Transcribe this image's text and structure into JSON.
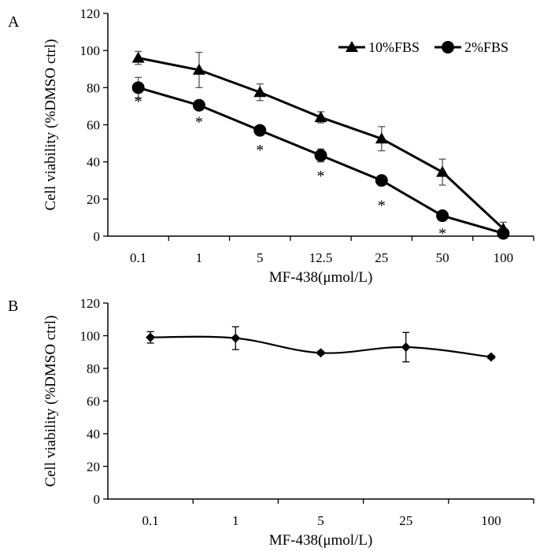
{
  "chart_data": [
    {
      "type": "line",
      "panel_label": "A",
      "categories": [
        "0.1",
        "1",
        "5",
        "12.5",
        "25",
        "50",
        "100"
      ],
      "xlabel": "MF-438(μmol/L)",
      "ylabel": "Cell viability (%DMSO ctrl)",
      "ylim": [
        0,
        120
      ],
      "yticks": [
        "0",
        "20",
        "40",
        "60",
        "80",
        "100",
        "120"
      ],
      "series": [
        {
          "name": "10%FBS",
          "marker": "triangle",
          "values": [
            96,
            89.5,
            77.5,
            64,
            52.5,
            34.5,
            4
          ],
          "errors": [
            3.5,
            9.5,
            4.5,
            3,
            6.5,
            7,
            3.5
          ]
        },
        {
          "name": "2%FBS",
          "marker": "circle",
          "values": [
            80,
            70.5,
            57,
            43.5,
            30,
            11,
            1.5
          ],
          "errors": [
            5.5,
            2.5,
            1.5,
            3.5,
            1.5,
            1.5,
            1
          ]
        }
      ],
      "annotations": [
        {
          "category": "0.1",
          "text": "*",
          "y": 74
        },
        {
          "category": "1",
          "text": "*",
          "y": 63
        },
        {
          "category": "5",
          "text": "*",
          "y": 48
        },
        {
          "category": "12.5",
          "text": "*",
          "y": 34
        },
        {
          "category": "25",
          "text": "*",
          "y": 18
        },
        {
          "category": "50",
          "text": "*",
          "y": 3
        }
      ],
      "legend": "top-right"
    },
    {
      "type": "line",
      "panel_label": "B",
      "categories": [
        "0.1",
        "1",
        "5",
        "25",
        "100"
      ],
      "xlabel": "MF-438(μmol/L)",
      "ylabel": "Cell viability (%DMSO ctrl)",
      "ylim": [
        0,
        120
      ],
      "yticks": [
        "0",
        "20",
        "40",
        "60",
        "80",
        "100",
        "120"
      ],
      "series": [
        {
          "name": "",
          "marker": "diamond",
          "values": [
            99,
            98.5,
            89.5,
            93,
            87
          ],
          "errors": [
            3.5,
            7,
            1,
            9,
            1
          ]
        }
      ],
      "annotations": [],
      "legend": "none"
    }
  ]
}
